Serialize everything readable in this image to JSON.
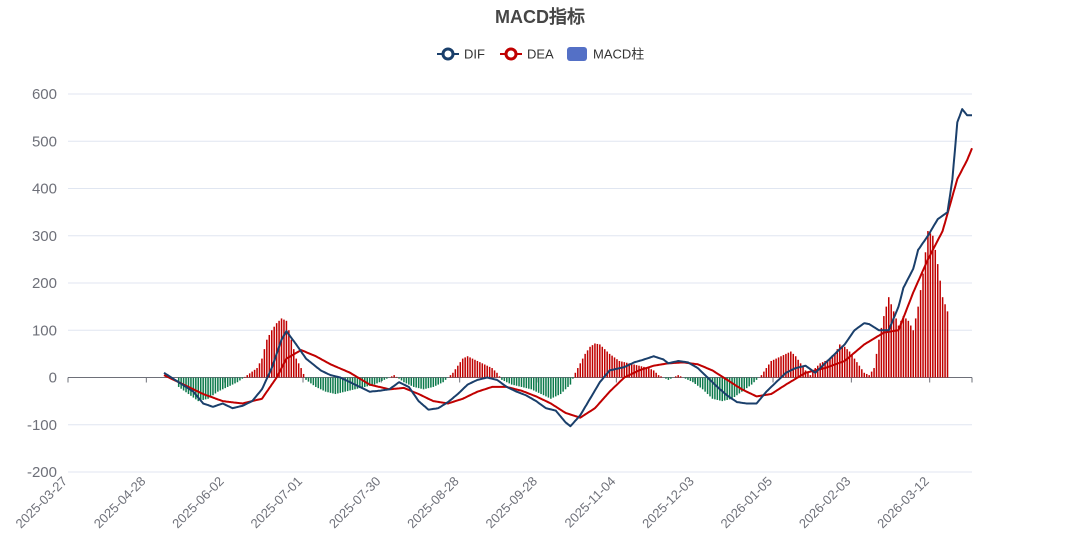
{
  "chart_data": {
    "type": "line",
    "title": "MACD指标",
    "legend": {
      "position": "top-center",
      "items": [
        {
          "name": "DIF",
          "color": "#1a3f6b",
          "symbol": "line-circle"
        },
        {
          "name": "DEA",
          "color": "#c00000",
          "symbol": "line-circle"
        },
        {
          "name": "MACD柱",
          "color": "#5470c6",
          "symbol": "rect"
        }
      ]
    },
    "ylim": [
      -200,
      600
    ],
    "yticks": [
      "-200",
      "-100",
      "0",
      "100",
      "200",
      "300",
      "400",
      "500",
      "600"
    ],
    "x_labels": [
      "2025-03-27",
      "2025-04-28",
      "2025-06-02",
      "2025-07-01",
      "2025-07-30",
      "2025-08-28",
      "2025-09-28",
      "2025-11-04",
      "2025-12-03",
      "2026-01-05",
      "2026-02-03",
      "2026-03-12"
    ],
    "x_points": 232,
    "colors": {
      "dif": "#1a3f6b",
      "dea": "#c00000",
      "bar_pos": "#c00000",
      "bar_neg": "#0d7a4c"
    },
    "series": [
      {
        "name": "DIF",
        "start": 24,
        "points": [
          [
            24,
            10
          ],
          [
            30,
            -10
          ],
          [
            36,
            -30
          ],
          [
            40,
            -55
          ],
          [
            44,
            -62
          ],
          [
            48,
            -55
          ],
          [
            52,
            -65
          ],
          [
            56,
            -60
          ],
          [
            60,
            -50
          ],
          [
            64,
            -25
          ],
          [
            68,
            20
          ],
          [
            72,
            80
          ],
          [
            74,
            98
          ],
          [
            78,
            70
          ],
          [
            82,
            40
          ],
          [
            88,
            15
          ],
          [
            92,
            5
          ],
          [
            96,
            0
          ],
          [
            100,
            -10
          ],
          [
            104,
            -20
          ],
          [
            108,
            -30
          ],
          [
            112,
            -28
          ],
          [
            116,
            -25
          ],
          [
            120,
            -10
          ],
          [
            124,
            -20
          ],
          [
            128,
            -50
          ],
          [
            132,
            -68
          ],
          [
            136,
            -65
          ],
          [
            140,
            -52
          ],
          [
            144,
            -35
          ],
          [
            148,
            -15
          ],
          [
            152,
            -5
          ],
          [
            156,
            0
          ],
          [
            160,
            -5
          ],
          [
            164,
            -20
          ],
          [
            168,
            -30
          ],
          [
            172,
            -38
          ],
          [
            176,
            -50
          ],
          [
            180,
            -65
          ],
          [
            184,
            -70
          ],
          [
            188,
            -95
          ],
          [
            190,
            -103
          ],
          [
            194,
            -80
          ],
          [
            198,
            -45
          ],
          [
            202,
            -10
          ],
          [
            206,
            15
          ],
          [
            212,
            22
          ],
          [
            216,
            32
          ],
          [
            220,
            38
          ],
          [
            224,
            45
          ],
          [
            228,
            38
          ],
          [
            230,
            30
          ],
          [
            234,
            35
          ],
          [
            238,
            32
          ],
          [
            242,
            20
          ],
          [
            246,
            0
          ],
          [
            250,
            -20
          ],
          [
            254,
            -38
          ],
          [
            258,
            -52
          ],
          [
            262,
            -55
          ],
          [
            266,
            -55
          ],
          [
            270,
            -30
          ],
          [
            274,
            -10
          ],
          [
            278,
            10
          ],
          [
            282,
            20
          ],
          [
            286,
            25
          ],
          [
            290,
            10
          ],
          [
            294,
            30
          ],
          [
            298,
            50
          ],
          [
            302,
            70
          ],
          [
            306,
            100
          ],
          [
            310,
            115
          ],
          [
            312,
            113
          ],
          [
            316,
            100
          ],
          [
            320,
            100
          ],
          [
            324,
            150
          ],
          [
            326,
            190
          ],
          [
            330,
            230
          ],
          [
            332,
            270
          ],
          [
            336,
            300
          ],
          [
            340,
            335
          ],
          [
            344,
            350
          ],
          [
            346,
            420
          ],
          [
            348,
            540
          ],
          [
            350,
            568
          ],
          [
            352,
            555
          ],
          [
            354,
            555
          ]
        ]
      },
      {
        "name": "DEA",
        "start": 24,
        "points": [
          [
            24,
            5
          ],
          [
            32,
            -15
          ],
          [
            40,
            -35
          ],
          [
            48,
            -50
          ],
          [
            56,
            -55
          ],
          [
            64,
            -45
          ],
          [
            70,
            0
          ],
          [
            74,
            40
          ],
          [
            80,
            58
          ],
          [
            86,
            45
          ],
          [
            92,
            28
          ],
          [
            100,
            10
          ],
          [
            108,
            -15
          ],
          [
            116,
            -25
          ],
          [
            122,
            -22
          ],
          [
            128,
            -35
          ],
          [
            134,
            -50
          ],
          [
            140,
            -55
          ],
          [
            146,
            -45
          ],
          [
            152,
            -30
          ],
          [
            158,
            -20
          ],
          [
            164,
            -20
          ],
          [
            170,
            -28
          ],
          [
            176,
            -40
          ],
          [
            182,
            -55
          ],
          [
            188,
            -75
          ],
          [
            194,
            -85
          ],
          [
            200,
            -65
          ],
          [
            206,
            -30
          ],
          [
            212,
            0
          ],
          [
            218,
            15
          ],
          [
            224,
            25
          ],
          [
            230,
            30
          ],
          [
            236,
            32
          ],
          [
            242,
            28
          ],
          [
            248,
            15
          ],
          [
            254,
            -5
          ],
          [
            260,
            -25
          ],
          [
            266,
            -40
          ],
          [
            272,
            -35
          ],
          [
            278,
            -15
          ],
          [
            286,
            10
          ],
          [
            294,
            20
          ],
          [
            302,
            35
          ],
          [
            310,
            70
          ],
          [
            318,
            95
          ],
          [
            324,
            100
          ],
          [
            330,
            180
          ],
          [
            336,
            250
          ],
          [
            342,
            310
          ],
          [
            348,
            420
          ],
          [
            352,
            460
          ],
          [
            354,
            485
          ]
        ]
      },
      {
        "name": "MACD柱",
        "start": 24,
        "points": [
          [
            30,
            -20
          ],
          [
            34,
            -35
          ],
          [
            38,
            -50
          ],
          [
            42,
            -45
          ],
          [
            46,
            -30
          ],
          [
            50,
            -20
          ],
          [
            54,
            -10
          ],
          [
            58,
            5
          ],
          [
            62,
            20
          ],
          [
            64,
            40
          ],
          [
            66,
            80
          ],
          [
            68,
            100
          ],
          [
            70,
            115
          ],
          [
            72,
            125
          ],
          [
            74,
            120
          ],
          [
            76,
            80
          ],
          [
            78,
            40
          ],
          [
            80,
            20
          ],
          [
            82,
            -5
          ],
          [
            86,
            -20
          ],
          [
            90,
            -30
          ],
          [
            94,
            -35
          ],
          [
            98,
            -30
          ],
          [
            102,
            -25
          ],
          [
            106,
            -20
          ],
          [
            110,
            -15
          ],
          [
            114,
            -5
          ],
          [
            118,
            5
          ],
          [
            122,
            -10
          ],
          [
            126,
            -20
          ],
          [
            130,
            -25
          ],
          [
            134,
            -20
          ],
          [
            138,
            -10
          ],
          [
            140,
            0
          ],
          [
            142,
            10
          ],
          [
            144,
            25
          ],
          [
            146,
            40
          ],
          [
            148,
            45
          ],
          [
            150,
            40
          ],
          [
            154,
            30
          ],
          [
            158,
            20
          ],
          [
            160,
            10
          ],
          [
            162,
            -5
          ],
          [
            166,
            -15
          ],
          [
            170,
            -20
          ],
          [
            174,
            -25
          ],
          [
            178,
            -35
          ],
          [
            182,
            -45
          ],
          [
            186,
            -35
          ],
          [
            190,
            -15
          ],
          [
            192,
            10
          ],
          [
            194,
            30
          ],
          [
            196,
            50
          ],
          [
            198,
            65
          ],
          [
            200,
            72
          ],
          [
            202,
            70
          ],
          [
            206,
            50
          ],
          [
            210,
            35
          ],
          [
            214,
            30
          ],
          [
            218,
            25
          ],
          [
            222,
            20
          ],
          [
            224,
            15
          ],
          [
            226,
            5
          ],
          [
            230,
            -5
          ],
          [
            234,
            5
          ],
          [
            236,
            0
          ],
          [
            240,
            -10
          ],
          [
            244,
            -25
          ],
          [
            248,
            -45
          ],
          [
            252,
            -50
          ],
          [
            256,
            -45
          ],
          [
            260,
            -30
          ],
          [
            264,
            -15
          ],
          [
            266,
            -5
          ],
          [
            268,
            5
          ],
          [
            270,
            20
          ],
          [
            272,
            35
          ],
          [
            274,
            40
          ],
          [
            276,
            45
          ],
          [
            278,
            50
          ],
          [
            280,
            55
          ],
          [
            282,
            45
          ],
          [
            284,
            30
          ],
          [
            286,
            15
          ],
          [
            288,
            5
          ],
          [
            290,
            20
          ],
          [
            292,
            30
          ],
          [
            294,
            35
          ],
          [
            296,
            40
          ],
          [
            298,
            50
          ],
          [
            300,
            70
          ],
          [
            302,
            65
          ],
          [
            304,
            55
          ],
          [
            306,
            40
          ],
          [
            308,
            25
          ],
          [
            310,
            10
          ],
          [
            312,
            5
          ],
          [
            314,
            20
          ],
          [
            316,
            80
          ],
          [
            318,
            130
          ],
          [
            320,
            170
          ],
          [
            322,
            140
          ],
          [
            324,
            110
          ],
          [
            326,
            130
          ],
          [
            328,
            120
          ],
          [
            330,
            100
          ],
          [
            332,
            150
          ],
          [
            334,
            220
          ],
          [
            336,
            310
          ],
          [
            338,
            300
          ],
          [
            340,
            240
          ],
          [
            342,
            170
          ],
          [
            344,
            140
          ]
        ]
      }
    ]
  }
}
